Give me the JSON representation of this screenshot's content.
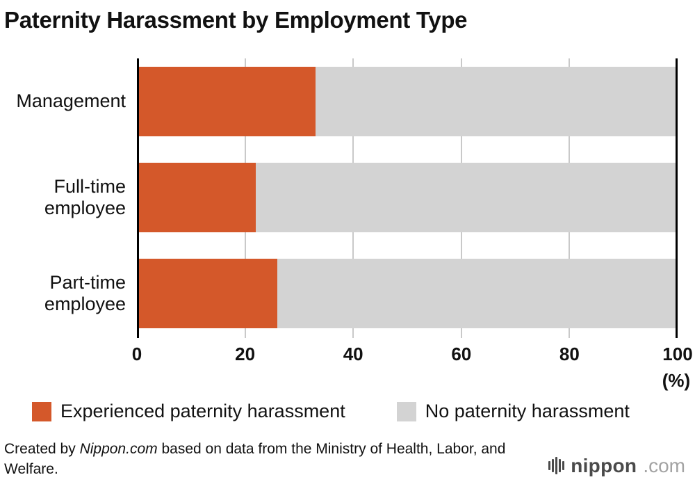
{
  "title": "Paternity Harassment by Employment Type",
  "chart_data": {
    "type": "bar",
    "orientation": "horizontal",
    "stacked": true,
    "title": "Paternity Harassment by Employment Type",
    "categories": [
      "Management",
      "Full-time\nemployee",
      "Part-time\nemployee"
    ],
    "series": [
      {
        "name": "Experienced paternity harassment",
        "color": "#d4582a",
        "values": [
          33,
          22,
          26
        ]
      },
      {
        "name": "No paternity harassment",
        "color": "#d3d3d3",
        "values": [
          67,
          78,
          74
        ]
      }
    ],
    "xlim": [
      0,
      100
    ],
    "x_ticks": [
      0,
      20,
      40,
      60,
      80,
      100
    ],
    "x_unit": "(%)",
    "xlabel": "(%)",
    "ylabel": "",
    "grid": true,
    "legend_position": "bottom",
    "axis_color": "#000000",
    "gridline_color": "#c9c9c9"
  },
  "footer": {
    "credit_prefix": "Created by ",
    "credit_source": "Nippon.com",
    "credit_suffix": " based on data from the Ministry of Health, Labor, and Welfare.",
    "logo_name": "nippon",
    "logo_tld": ".com"
  }
}
